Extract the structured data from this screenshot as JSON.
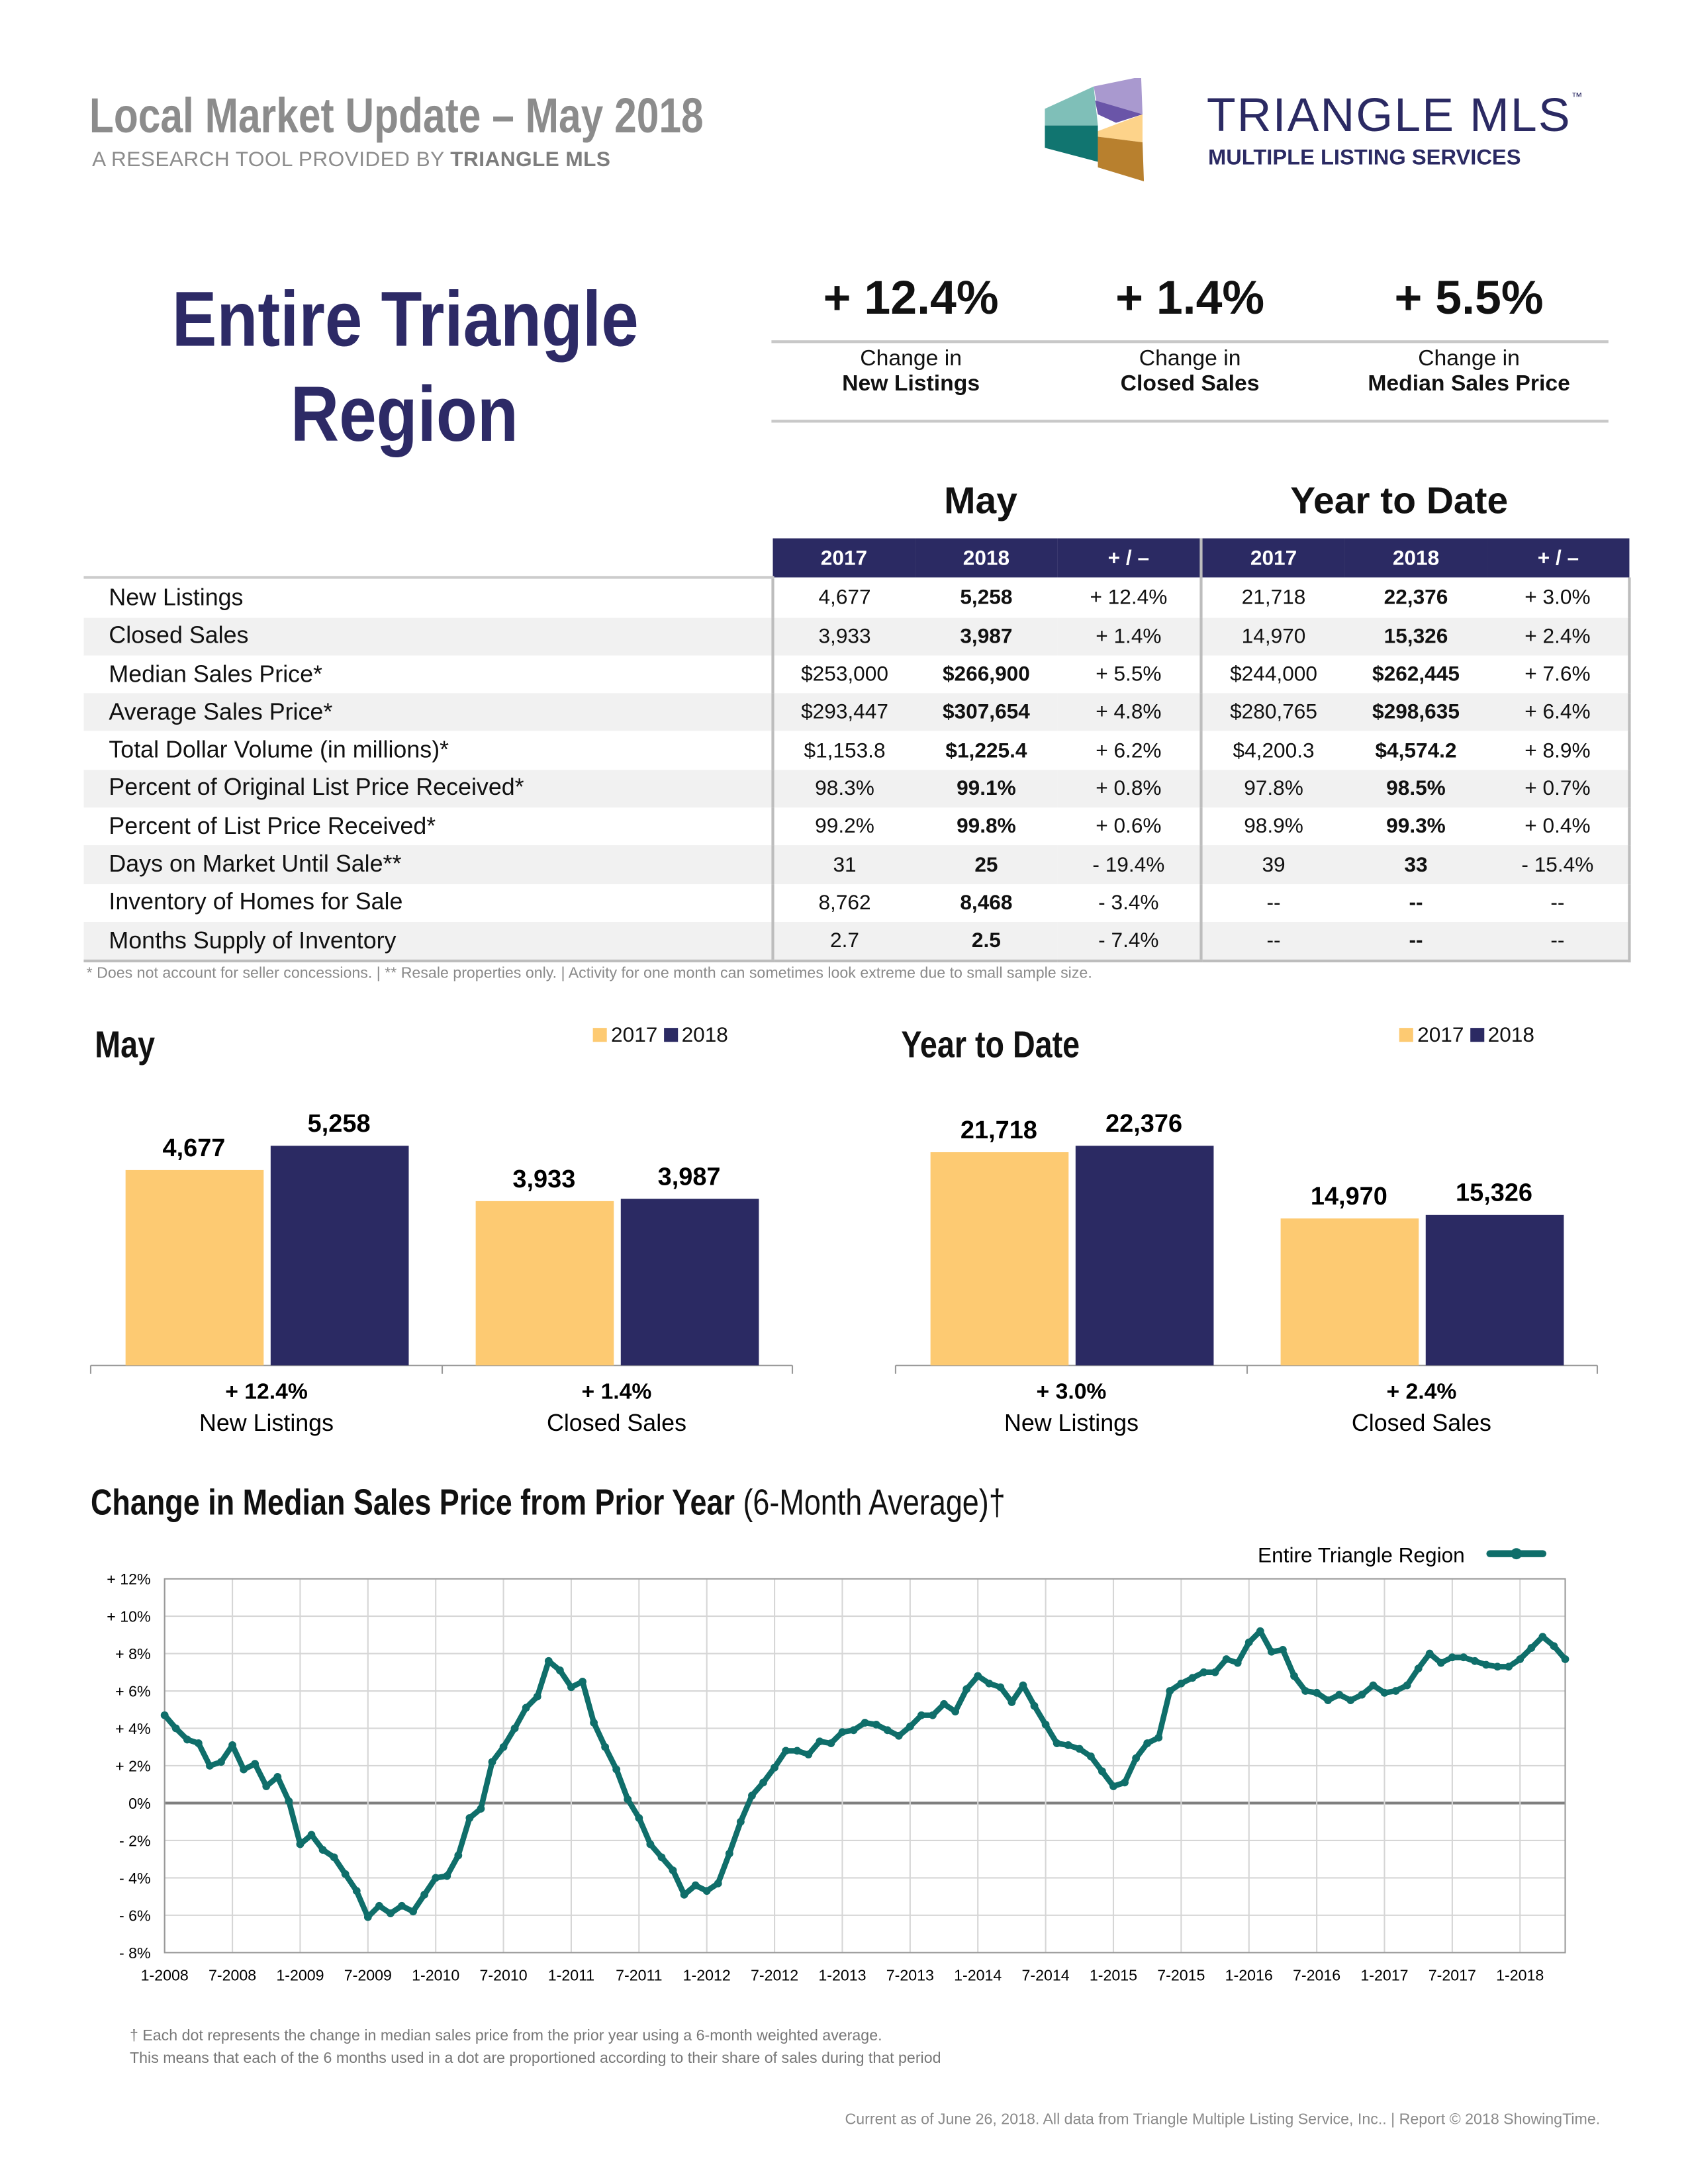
{
  "header": {
    "title": "Local Market Update – May 2018",
    "subtitle_prefix": "A RESEARCH TOOL PROVIDED BY ",
    "subtitle_brand": "TRIANGLE MLS",
    "logo": {
      "text": "TRIANGLE MLS",
      "tm": "™",
      "tagline": "MULTIPLE LISTING SERVICES",
      "colors": [
        "#7fbfb8",
        "#117570",
        "#a999cf",
        "#6a55a8",
        "#fdd38a",
        "#b8802e"
      ]
    }
  },
  "region": {
    "line1": "Entire Triangle",
    "line2": "Region"
  },
  "summary": [
    {
      "value": "+ 12.4%",
      "label1": "Change in",
      "label2": "New Listings"
    },
    {
      "value": "+ 1.4%",
      "label1": "Change in",
      "label2": "Closed Sales"
    },
    {
      "value": "+ 5.5%",
      "label1": "Change in",
      "label2": "Median Sales Price"
    }
  ],
  "table": {
    "group_may": "May",
    "group_ytd": "Year to Date",
    "headers": [
      "2017",
      "2018",
      "+ / –",
      "2017",
      "2018",
      "+ / –"
    ],
    "rows": [
      [
        "New Listings",
        "4,677",
        "5,258",
        "+ 12.4%",
        "21,718",
        "22,376",
        "+ 3.0%"
      ],
      [
        "Closed Sales",
        "3,933",
        "3,987",
        "+ 1.4%",
        "14,970",
        "15,326",
        "+ 2.4%"
      ],
      [
        "Median Sales Price*",
        "$253,000",
        "$266,900",
        "+ 5.5%",
        "$244,000",
        "$262,445",
        "+ 7.6%"
      ],
      [
        "Average Sales Price*",
        "$293,447",
        "$307,654",
        "+ 4.8%",
        "$280,765",
        "$298,635",
        "+ 6.4%"
      ],
      [
        "Total Dollar Volume (in millions)*",
        "$1,153.8",
        "$1,225.4",
        "+ 6.2%",
        "$4,200.3",
        "$4,574.2",
        "+ 8.9%"
      ],
      [
        "Percent of Original List Price Received*",
        "98.3%",
        "99.1%",
        "+ 0.8%",
        "97.8%",
        "98.5%",
        "+ 0.7%"
      ],
      [
        "Percent of List Price Received*",
        "99.2%",
        "99.8%",
        "+ 0.6%",
        "98.9%",
        "99.3%",
        "+ 0.4%"
      ],
      [
        "Days on Market Until Sale**",
        "31",
        "25",
        "- 19.4%",
        "39",
        "33",
        "- 15.4%"
      ],
      [
        "Inventory of Homes for Sale",
        "8,762",
        "8,468",
        "- 3.4%",
        "--",
        "--",
        "--"
      ],
      [
        "Months Supply of Inventory",
        "2.7",
        "2.5",
        "- 7.4%",
        "--",
        "--",
        "--"
      ]
    ],
    "footnote": "* Does not account for seller concessions.  |  ** Resale properties only.  |  Activity for one month can sometimes look extreme due to small sample size."
  },
  "chart_data": [
    {
      "type": "bar",
      "title": "May",
      "legend": "top",
      "series_names": [
        "2017",
        "2018"
      ],
      "colors": [
        "#fdca72",
        "#2b2a63"
      ],
      "categories": [
        "New Listings",
        "Closed Sales"
      ],
      "changes": [
        "+ 12.4%",
        "+ 1.4%"
      ],
      "series": [
        {
          "name": "2017",
          "values": [
            4677,
            3933
          ],
          "labels": [
            "4,677",
            "3,933"
          ]
        },
        {
          "name": "2018",
          "values": [
            5258,
            3987
          ],
          "labels": [
            "5,258",
            "3,987"
          ]
        }
      ]
    },
    {
      "type": "bar",
      "title": "Year to Date",
      "legend": "top",
      "series_names": [
        "2017",
        "2018"
      ],
      "colors": [
        "#fdca72",
        "#2b2a63"
      ],
      "categories": [
        "New Listings",
        "Closed Sales"
      ],
      "changes": [
        "+ 3.0%",
        "+ 2.4%"
      ],
      "series": [
        {
          "name": "2017",
          "values": [
            21718,
            14970
          ],
          "labels": [
            "21,718",
            "14,970"
          ]
        },
        {
          "name": "2018",
          "values": [
            22376,
            15326
          ],
          "labels": [
            "22,376",
            "15,326"
          ]
        }
      ]
    },
    {
      "type": "line",
      "title_bold": "Change in Median Sales Price from Prior Year",
      "title_regular": " (6-Month Average)†",
      "legend": "top-right",
      "series_name": "Entire Triangle Region",
      "color": "#0f6e6a",
      "x_start": "1-2008",
      "x_end": "5-2018",
      "x_ticks": [
        "1-2008",
        "7-2008",
        "1-2009",
        "7-2009",
        "1-2010",
        "7-2010",
        "1-2011",
        "7-2011",
        "1-2012",
        "7-2012",
        "1-2013",
        "7-2013",
        "1-2014",
        "7-2014",
        "1-2015",
        "7-2015",
        "1-2016",
        "7-2016",
        "1-2017",
        "7-2017",
        "1-2018"
      ],
      "y_ticks": [
        "+ 12%",
        "+ 10%",
        "+ 8%",
        "+ 6%",
        "+ 4%",
        "+ 2%",
        "0%",
        "- 2%",
        "- 4%",
        "- 6%",
        "- 8%"
      ],
      "ylim": [
        -8,
        12
      ],
      "grid": true,
      "values": [
        4.7,
        4.0,
        3.4,
        3.2,
        2.0,
        2.2,
        3.1,
        1.8,
        2.1,
        0.9,
        1.4,
        0.1,
        -2.2,
        -1.7,
        -2.5,
        -2.9,
        -3.8,
        -4.7,
        -6.1,
        -5.5,
        -5.9,
        -5.5,
        -5.8,
        -4.9,
        -4.0,
        -3.9,
        -2.8,
        -0.8,
        -0.3,
        2.2,
        3.0,
        4.0,
        5.1,
        5.7,
        7.6,
        7.1,
        6.2,
        6.5,
        4.3,
        3.0,
        1.8,
        0.2,
        -0.8,
        -2.2,
        -2.9,
        -3.6,
        -4.9,
        -4.4,
        -4.7,
        -4.3,
        -2.7,
        -1.0,
        0.4,
        1.1,
        1.9,
        2.8,
        2.8,
        2.6,
        3.3,
        3.2,
        3.8,
        3.9,
        4.3,
        4.2,
        3.9,
        3.6,
        4.1,
        4.7,
        4.7,
        5.3,
        4.9,
        6.1,
        6.8,
        6.4,
        6.2,
        5.4,
        6.3,
        5.2,
        4.2,
        3.2,
        3.1,
        2.9,
        2.5,
        1.7,
        0.9,
        1.1,
        2.4,
        3.2,
        3.5,
        6.0,
        6.4,
        6.7,
        7.0,
        7.0,
        7.7,
        7.5,
        8.6,
        9.2,
        8.1,
        8.2,
        6.8,
        6.0,
        5.9,
        5.5,
        5.8,
        5.5,
        5.8,
        6.3,
        5.9,
        6.0,
        6.3,
        7.2,
        8.0,
        7.5,
        7.8,
        7.8,
        7.6,
        7.4,
        7.3,
        7.3,
        7.7,
        8.3,
        8.9,
        8.4,
        7.7
      ]
    }
  ],
  "line_footnote": {
    "line1": "† Each dot represents the change in median sales price from the prior year using a 6-month weighted average.",
    "line2": "This means that each of the 6 months used in a dot are proportioned according to their share of sales during that period"
  },
  "credit": "Current as of June 26, 2018. All data from Triangle Multiple Listing Service, Inc..  |  Report © 2018 ShowingTime."
}
